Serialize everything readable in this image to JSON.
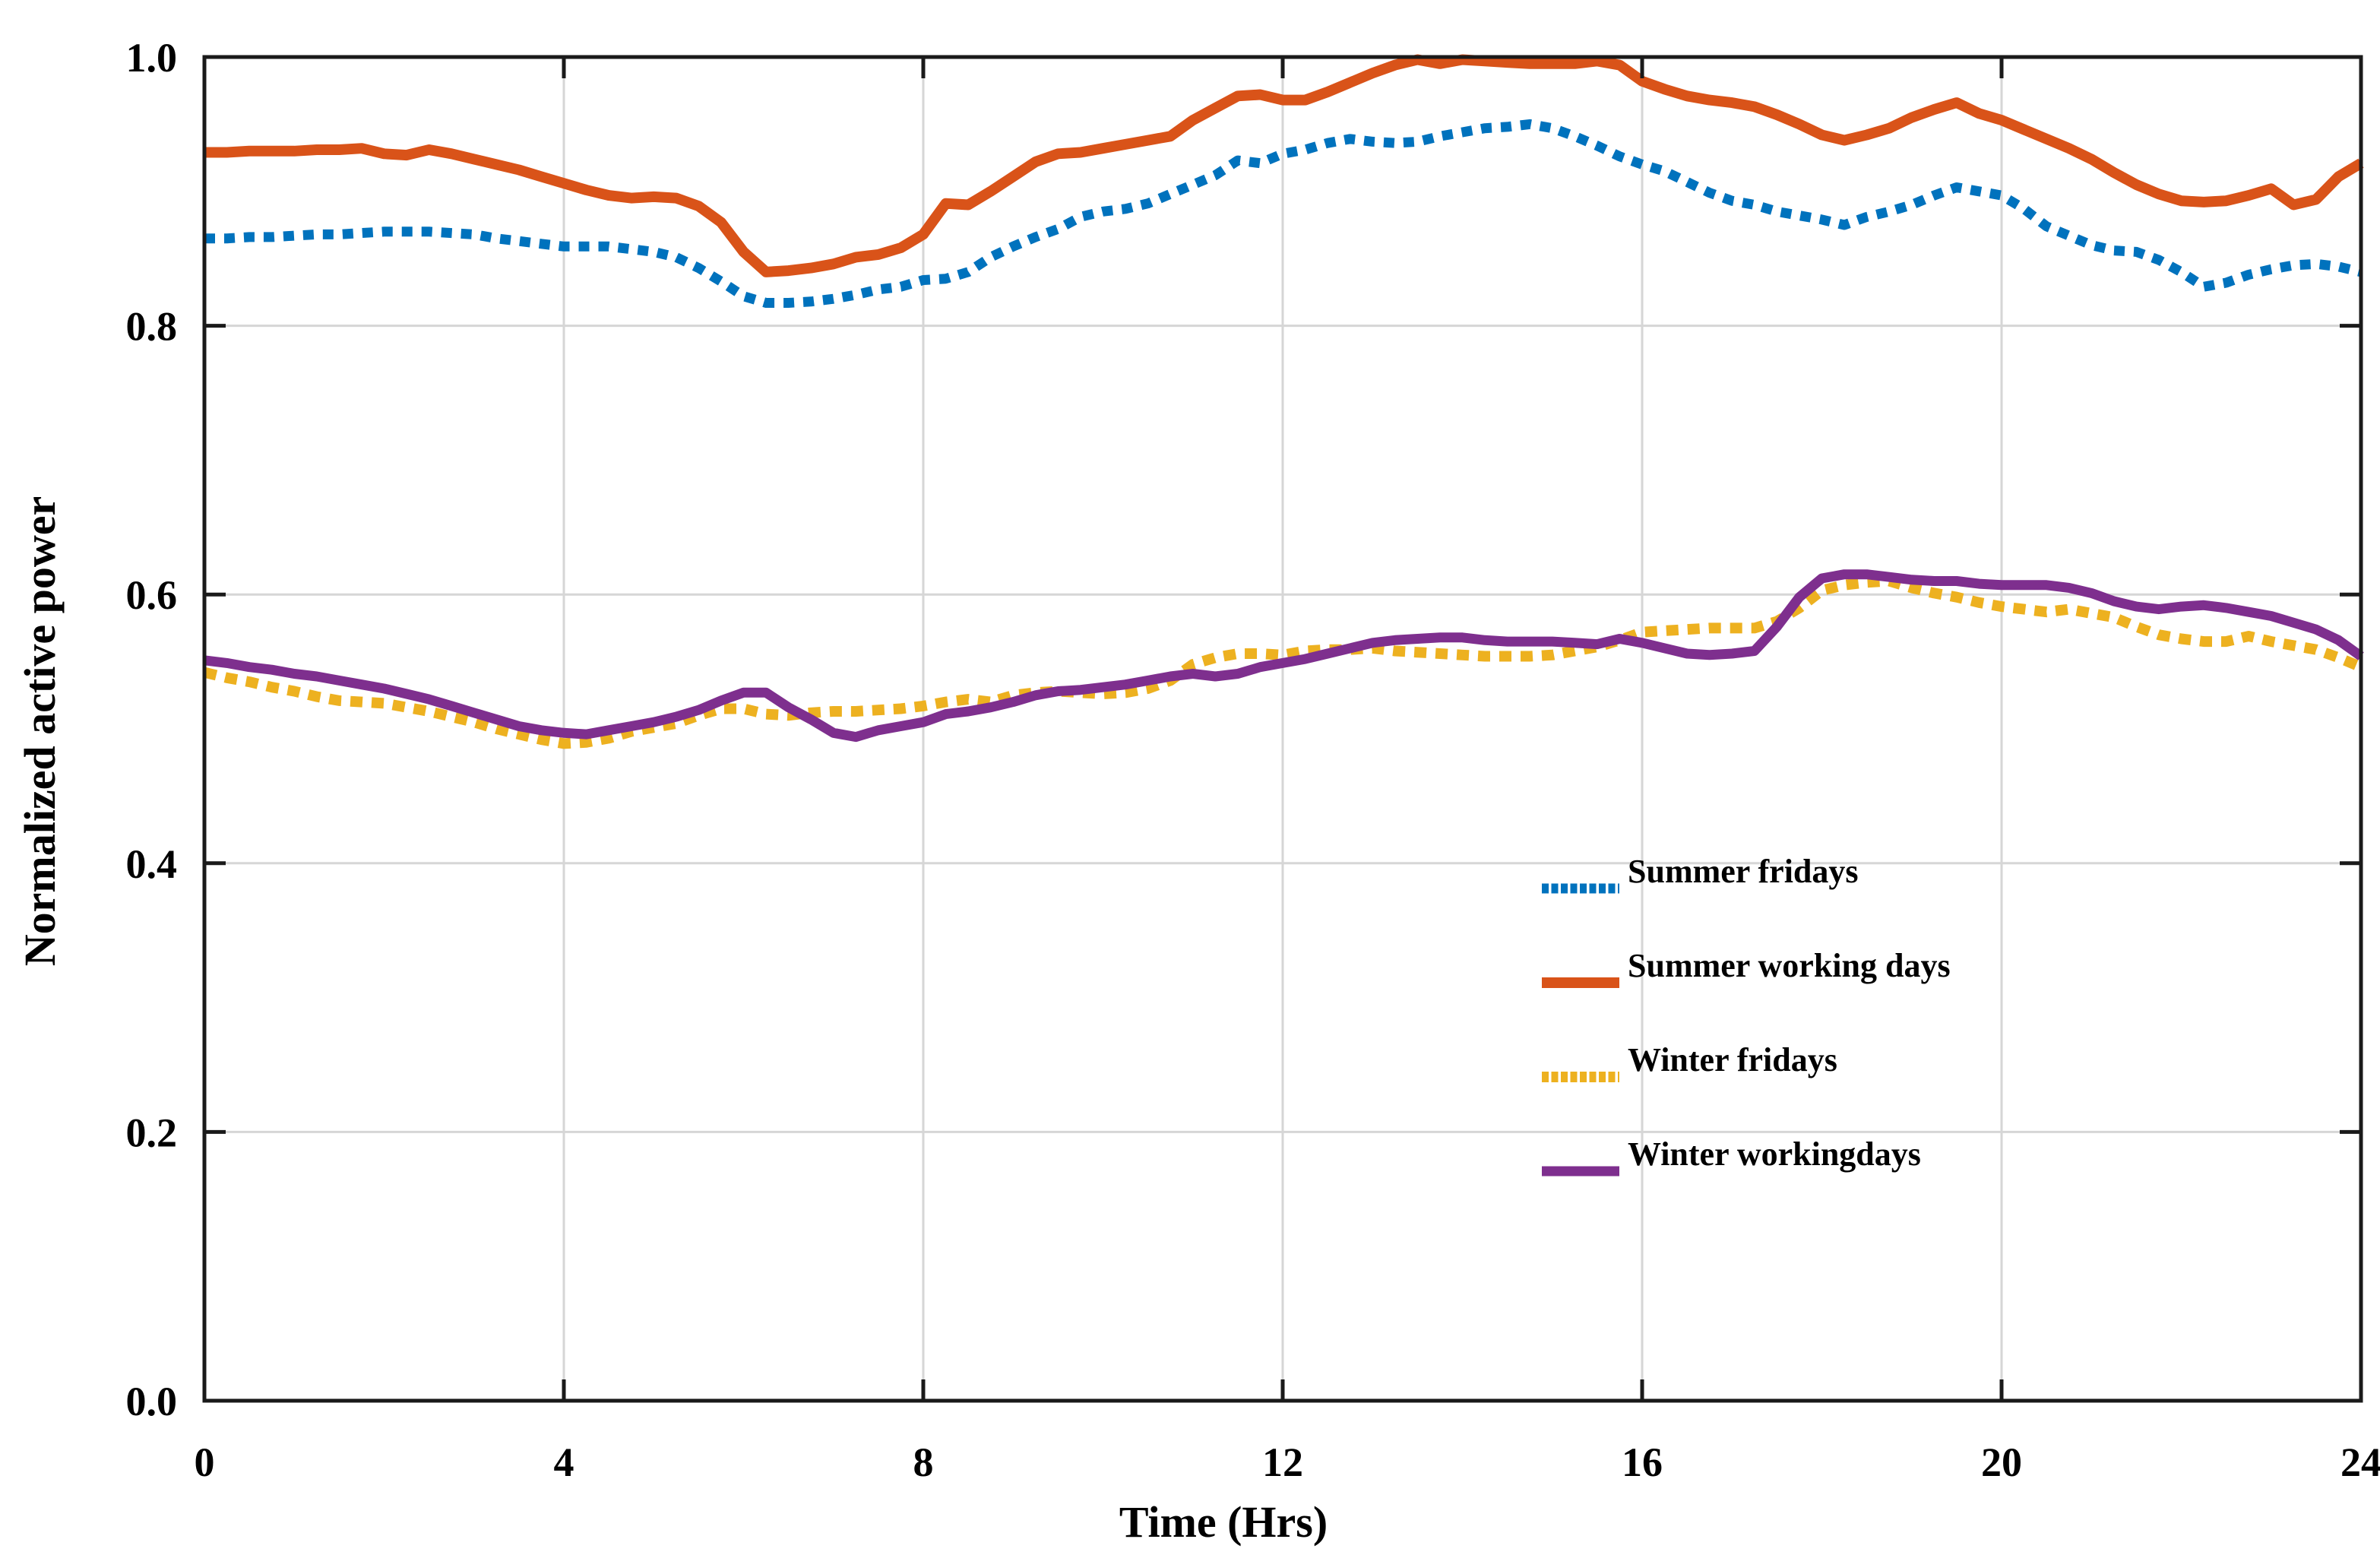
{
  "chart_data": {
    "type": "line",
    "title": "",
    "xlabel": "Time (Hrs)",
    "ylabel": "Normalized active power",
    "grid": true,
    "legend_position": "center-right",
    "background": "#ffffff",
    "axis_color": "#1a1a1a",
    "grid_color": "#d6d6d6",
    "x_axis": {
      "range": [
        0,
        24
      ],
      "ticks": [
        0,
        4,
        8,
        12,
        16,
        20,
        24
      ],
      "tick_labels": [
        "0",
        "4",
        "8",
        "12",
        "16",
        "20",
        "24"
      ]
    },
    "y_axis": {
      "range": [
        0,
        1
      ],
      "ticks": [
        0,
        0.2,
        0.4,
        0.6,
        0.8,
        1.0
      ],
      "tick_labels": [
        "0.0",
        "0.2",
        "0.4",
        "0.6",
        "0.8",
        "1.0"
      ]
    },
    "t_start": 0,
    "t_step": 0.25,
    "series": [
      {
        "name": "Summer fridays",
        "color": "#0072BD",
        "style": "dotted",
        "values": [
          0.865,
          0.865,
          0.866,
          0.866,
          0.867,
          0.868,
          0.868,
          0.869,
          0.87,
          0.87,
          0.87,
          0.869,
          0.868,
          0.865,
          0.863,
          0.861,
          0.859,
          0.859,
          0.859,
          0.857,
          0.855,
          0.851,
          0.843,
          0.833,
          0.822,
          0.817,
          0.817,
          0.818,
          0.82,
          0.823,
          0.827,
          0.829,
          0.834,
          0.835,
          0.84,
          0.851,
          0.859,
          0.866,
          0.872,
          0.881,
          0.885,
          0.887,
          0.891,
          0.898,
          0.905,
          0.912,
          0.923,
          0.921,
          0.928,
          0.931,
          0.936,
          0.939,
          0.937,
          0.936,
          0.937,
          0.941,
          0.944,
          0.947,
          0.948,
          0.95,
          0.947,
          0.941,
          0.934,
          0.926,
          0.92,
          0.915,
          0.907,
          0.899,
          0.893,
          0.89,
          0.885,
          0.882,
          0.879,
          0.875,
          0.881,
          0.885,
          0.89,
          0.897,
          0.903,
          0.9,
          0.897,
          0.887,
          0.874,
          0.867,
          0.86,
          0.856,
          0.855,
          0.849,
          0.84,
          0.829,
          0.832,
          0.838,
          0.842,
          0.845,
          0.846,
          0.844,
          0.84
        ]
      },
      {
        "name": "Summer working days",
        "color": "#D95319",
        "style": "solid",
        "values": [
          0.929,
          0.929,
          0.93,
          0.93,
          0.93,
          0.931,
          0.931,
          0.932,
          0.928,
          0.927,
          0.931,
          0.928,
          0.924,
          0.92,
          0.916,
          0.911,
          0.906,
          0.901,
          0.897,
          0.895,
          0.896,
          0.895,
          0.889,
          0.877,
          0.855,
          0.84,
          0.841,
          0.843,
          0.846,
          0.851,
          0.853,
          0.858,
          0.868,
          0.891,
          0.89,
          0.9,
          0.911,
          0.922,
          0.928,
          0.929,
          0.932,
          0.935,
          0.938,
          0.941,
          0.953,
          0.962,
          0.971,
          0.972,
          0.968,
          0.968,
          0.974,
          0.981,
          0.988,
          0.994,
          0.998,
          0.995,
          0.998,
          0.997,
          0.996,
          0.995,
          0.995,
          0.995,
          0.997,
          0.994,
          0.982,
          0.976,
          0.971,
          0.968,
          0.966,
          0.963,
          0.957,
          0.95,
          0.942,
          0.938,
          0.942,
          0.947,
          0.955,
          0.961,
          0.966,
          0.958,
          0.953,
          0.946,
          0.939,
          0.932,
          0.924,
          0.914,
          0.905,
          0.898,
          0.893,
          0.892,
          0.893,
          0.897,
          0.902,
          0.89,
          0.894,
          0.911,
          0.921
        ]
      },
      {
        "name": "Winter fridays",
        "color": "#EDB120",
        "style": "dotted",
        "values": [
          0.542,
          0.538,
          0.535,
          0.531,
          0.528,
          0.524,
          0.521,
          0.52,
          0.519,
          0.516,
          0.513,
          0.509,
          0.505,
          0.5,
          0.496,
          0.492,
          0.489,
          0.49,
          0.493,
          0.498,
          0.501,
          0.504,
          0.51,
          0.515,
          0.515,
          0.511,
          0.51,
          0.512,
          0.513,
          0.513,
          0.514,
          0.515,
          0.517,
          0.52,
          0.522,
          0.52,
          0.525,
          0.527,
          0.528,
          0.527,
          0.526,
          0.527,
          0.53,
          0.536,
          0.548,
          0.553,
          0.556,
          0.556,
          0.555,
          0.558,
          0.559,
          0.559,
          0.56,
          0.558,
          0.557,
          0.556,
          0.555,
          0.554,
          0.554,
          0.554,
          0.555,
          0.558,
          0.561,
          0.566,
          0.572,
          0.573,
          0.574,
          0.575,
          0.575,
          0.575,
          0.58,
          0.59,
          0.603,
          0.607,
          0.609,
          0.61,
          0.605,
          0.601,
          0.598,
          0.594,
          0.591,
          0.589,
          0.587,
          0.589,
          0.586,
          0.583,
          0.576,
          0.57,
          0.567,
          0.565,
          0.565,
          0.569,
          0.565,
          0.562,
          0.559,
          0.553,
          0.546
        ]
      },
      {
        "name": "Winter workingdays",
        "color": "#7E2F8E",
        "style": "solid",
        "values": [
          0.551,
          0.549,
          0.546,
          0.544,
          0.541,
          0.539,
          0.536,
          0.533,
          0.53,
          0.526,
          0.522,
          0.517,
          0.512,
          0.507,
          0.502,
          0.499,
          0.497,
          0.496,
          0.499,
          0.502,
          0.505,
          0.509,
          0.514,
          0.521,
          0.527,
          0.527,
          0.516,
          0.507,
          0.497,
          0.494,
          0.499,
          0.502,
          0.505,
          0.511,
          0.513,
          0.516,
          0.52,
          0.525,
          0.528,
          0.529,
          0.531,
          0.533,
          0.536,
          0.539,
          0.541,
          0.539,
          0.541,
          0.546,
          0.549,
          0.552,
          0.556,
          0.56,
          0.564,
          0.566,
          0.567,
          0.568,
          0.568,
          0.566,
          0.565,
          0.565,
          0.565,
          0.564,
          0.563,
          0.567,
          0.564,
          0.56,
          0.556,
          0.555,
          0.556,
          0.558,
          0.576,
          0.598,
          0.612,
          0.615,
          0.615,
          0.613,
          0.611,
          0.61,
          0.61,
          0.608,
          0.607,
          0.607,
          0.607,
          0.605,
          0.601,
          0.595,
          0.591,
          0.589,
          0.591,
          0.592,
          0.59,
          0.587,
          0.584,
          0.579,
          0.574,
          0.566,
          0.554
        ]
      }
    ]
  }
}
